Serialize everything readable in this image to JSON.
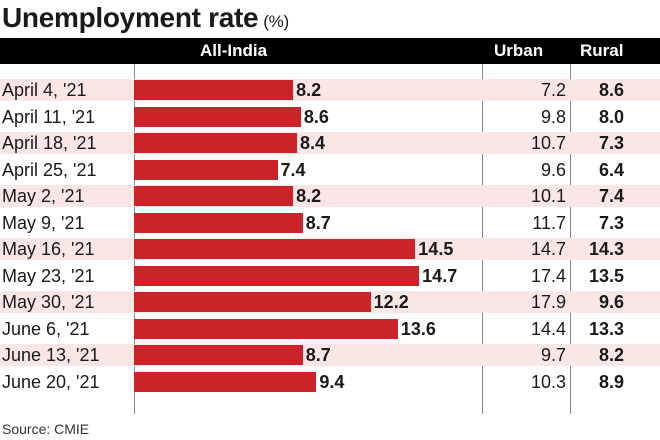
{
  "chart_data": {
    "type": "bar",
    "title": "Unemployment rate",
    "unit_label": "(%)",
    "column_headers": {
      "all_india": "All-India",
      "urban": "Urban",
      "rural": "Rural"
    },
    "categories": [
      "April 4, '21",
      "April 11, '21",
      "April 18, '21",
      "April 25, '21",
      "May 2, '21",
      "May 9, '21",
      "May 16, '21",
      "May 23, '21",
      "May 30, '21",
      "June 6, '21",
      "June 13, '21",
      "June 20, '21"
    ],
    "series": [
      {
        "name": "All-India",
        "values": [
          8.2,
          8.6,
          8.4,
          7.4,
          8.2,
          8.7,
          14.5,
          14.7,
          12.2,
          13.6,
          8.7,
          9.4
        ],
        "color": "#cc2229"
      },
      {
        "name": "Urban",
        "values": [
          7.2,
          9.8,
          10.7,
          9.6,
          10.1,
          11.7,
          14.7,
          17.4,
          17.9,
          14.4,
          9.7,
          10.3
        ]
      },
      {
        "name": "Rural",
        "values": [
          8.6,
          8.0,
          7.3,
          6.4,
          7.4,
          7.3,
          14.3,
          13.5,
          9.6,
          13.3,
          8.2,
          8.9
        ]
      }
    ],
    "orientation": "horizontal",
    "band_color": "#fbe6e6",
    "source": "Source: CMIE"
  }
}
